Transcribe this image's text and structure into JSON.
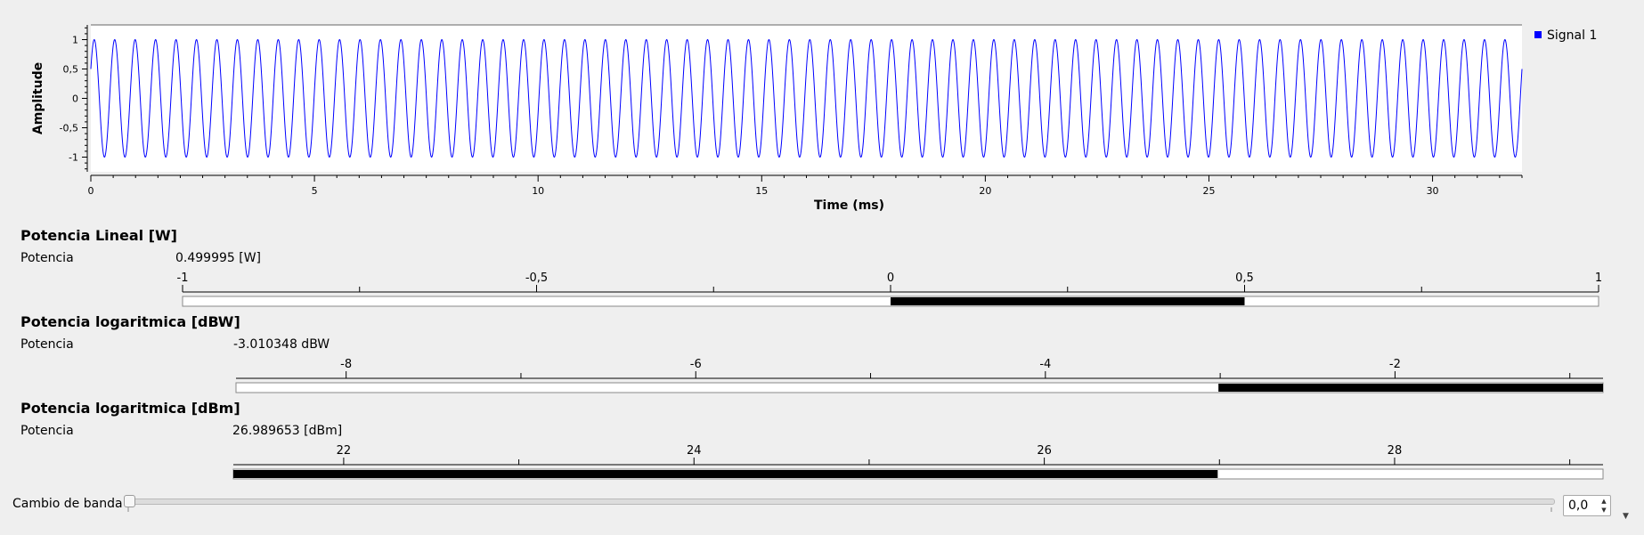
{
  "plot": {
    "ylabel": "Amplitude",
    "xlabel": "Time (ms)",
    "legend": [
      {
        "name": "Signal 1",
        "color": "#0000ff",
        "placement": "top-right"
      }
    ]
  },
  "chart_data": {
    "type": "line",
    "title": "",
    "xlabel": "Time (ms)",
    "ylabel": "Amplitude",
    "xlim": [
      0,
      32
    ],
    "ylim": [
      -1.25,
      1.25
    ],
    "xticks": [
      "0",
      "5",
      "10",
      "15",
      "20",
      "25",
      "30"
    ],
    "yticks": [
      "1",
      "0,5",
      "0",
      "-0,5",
      "-1"
    ],
    "grid": false,
    "series": [
      {
        "name": "Signal 1",
        "color": "#0000ff",
        "shape": "sine",
        "amplitude": 1,
        "frequency_khz": 2.1875,
        "phase_start": 0.5,
        "x_range": [
          0,
          32
        ]
      }
    ]
  },
  "gauges": [
    {
      "title": "Potencia Lineal [W]",
      "label": "Potencia",
      "value_text": "0.499995 [W]",
      "min": -1,
      "max": 1,
      "ticks": [
        "-1",
        "-0,5",
        "0",
        "0,5",
        "1"
      ],
      "tick_values": [
        -1,
        -0.5,
        0,
        0.5,
        1
      ],
      "fill_from": 0,
      "fill_to": 0.5
    },
    {
      "title": "Potencia logaritmica [dBW]",
      "label": "Potencia",
      "value_text": "-3.010348 dBW",
      "min": -8.63,
      "max": -0.81,
      "ticks": [
        "-8",
        "-6",
        "-4",
        "-2"
      ],
      "tick_values": [
        -8,
        -6,
        -4,
        -2
      ],
      "fill_from": -3.01,
      "fill_to": -0.81
    },
    {
      "title": "Potencia logaritmica [dBm]",
      "label": "Potencia",
      "value_text": "26.989653 [dBm]",
      "min": 21.37,
      "max": 29.19,
      "ticks": [
        "22",
        "24",
        "26",
        "28"
      ],
      "tick_values": [
        22,
        24,
        26,
        28
      ],
      "fill_from": 21.37,
      "fill_to": 26.99
    }
  ],
  "slider": {
    "label": "Cambio de banda",
    "value": 0
  },
  "spinbox": {
    "value": "0,0"
  }
}
